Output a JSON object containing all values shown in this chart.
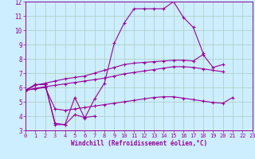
{
  "xlabel": "Windchill (Refroidissement éolien,°C)",
  "bg_color": "#cceeff",
  "grid_color": "#aaccbb",
  "line_color": "#990099",
  "xlim": [
    0,
    23
  ],
  "ylim": [
    3,
    12
  ],
  "xticks": [
    0,
    1,
    2,
    3,
    4,
    5,
    6,
    7,
    8,
    9,
    10,
    11,
    12,
    13,
    14,
    15,
    16,
    17,
    18,
    19,
    20,
    21,
    22,
    23
  ],
  "yticks": [
    3,
    4,
    5,
    6,
    7,
    8,
    9,
    10,
    11,
    12
  ],
  "series": [
    [
      5.8,
      6.2,
      6.2,
      3.4,
      3.4,
      5.3,
      3.85,
      5.2,
      6.3,
      9.1,
      10.5,
      11.5,
      11.5,
      11.5,
      11.5,
      12.0,
      10.9,
      10.2,
      8.4,
      null,
      null,
      null,
      null,
      null
    ],
    [
      5.8,
      6.2,
      6.2,
      3.5,
      3.4,
      4.1,
      3.9,
      4.0,
      null,
      null,
      null,
      null,
      null,
      null,
      null,
      null,
      null,
      null,
      null,
      null,
      null,
      null,
      null,
      null
    ],
    [
      5.8,
      6.15,
      6.3,
      6.45,
      6.6,
      6.7,
      6.8,
      7.0,
      7.2,
      7.4,
      7.6,
      7.7,
      7.75,
      7.8,
      7.85,
      7.9,
      7.9,
      7.85,
      8.3,
      7.4,
      7.6,
      null,
      null,
      null
    ],
    [
      5.8,
      5.95,
      6.05,
      6.15,
      6.25,
      6.35,
      6.45,
      6.55,
      6.65,
      6.8,
      6.95,
      7.05,
      7.15,
      7.25,
      7.35,
      7.45,
      7.45,
      7.4,
      7.3,
      7.2,
      7.1,
      null,
      null,
      null
    ],
    [
      5.8,
      5.9,
      6.0,
      4.5,
      4.4,
      4.5,
      4.6,
      4.7,
      4.8,
      4.9,
      5.0,
      5.1,
      5.2,
      5.3,
      5.35,
      5.35,
      5.25,
      5.15,
      5.05,
      4.95,
      4.9,
      5.3,
      null,
      null
    ]
  ]
}
